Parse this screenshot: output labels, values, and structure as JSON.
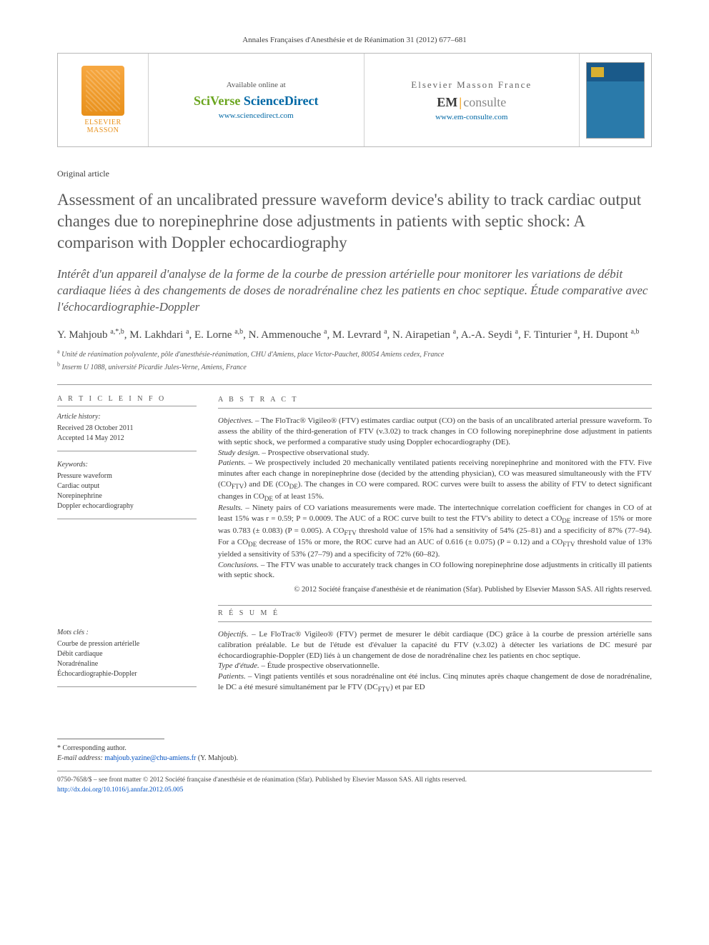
{
  "journal_header": "Annales Françaises d'Anesthésie et de Réanimation 31 (2012) 677–681",
  "banner": {
    "publisher_top": "ELSEVIER",
    "publisher_bottom": "MASSON",
    "col1": {
      "avail": "Available online at",
      "brand_a": "SciVerse ",
      "brand_b": "ScienceDirect",
      "url": "www.sciencedirect.com"
    },
    "col2": {
      "label": "Elsevier Masson France",
      "brand_a": "EM",
      "brand_b": "consulte",
      "url": "www.em-consulte.com"
    }
  },
  "article_type": "Original article",
  "title_en": "Assessment of an uncalibrated pressure waveform device's ability to track cardiac output changes due to norepinephrine dose adjustments in patients with septic shock: A comparison with Doppler echocardiography",
  "title_fr": "Intérêt d'un appareil d'analyse de la forme de la courbe de pression artérielle pour monitorer les variations de débit cardiaque liées à des changements de doses de noradrénaline chez les patients en choc septique. Étude comparative avec l'échocardiographie-Doppler",
  "authors_html": "Y. Mahjoub <sup>a,*,b</sup>, M. Lakhdari <sup>a</sup>, E. Lorne <sup>a,b</sup>, N. Ammenouche <sup>a</sup>, M. Levrard <sup>a</sup>, N. Airapetian <sup>a</sup>, A.-A. Seydi <sup>a</sup>, F. Tinturier <sup>a</sup>, H. Dupont <sup>a,b</sup>",
  "affiliations": [
    {
      "sup": "a",
      "text": "Unité de réanimation polyvalente, pôle d'anesthésie-réanimation, CHU d'Amiens, place Victor-Pauchet, 80054 Amiens cedex, France"
    },
    {
      "sup": "b",
      "text": "Inserm U 1088, université Picardie Jules-Verne, Amiens, France"
    }
  ],
  "article_info": {
    "header": "A R T I C L E  I N F O",
    "history_label": "Article history:",
    "received": "Received 28 October 2011",
    "accepted": "Accepted 14 May 2012",
    "keywords_label": "Keywords:",
    "keywords": [
      "Pressure waveform",
      "Cardiac output",
      "Norepinephrine",
      "Doppler echocardiography"
    ],
    "mots_label": "Mots clés :",
    "mots": [
      "Courbe de pression artérielle",
      "Débit cardiaque",
      "Noradrénaline",
      "Échocardiographie-Doppler"
    ]
  },
  "abstract": {
    "header": "A B S T R A C T",
    "objectives_label": "Objectives. –",
    "objectives": " The FloTrac® Vigileo® (FTV) estimates cardiac output (CO) on the basis of an uncalibrated arterial pressure waveform. To assess the ability of the third-generation of FTV (v.3.02) to track changes in CO following norepinephrine dose adjustment in patients with septic shock, we performed a comparative study using Doppler echocardiography (DE).",
    "design_label": "Study design. –",
    "design": " Prospective observational study.",
    "patients_label": "Patients. –",
    "patients": " We prospectively included 20 mechanically ventilated patients receiving norepinephrine and monitored with the FTV. Five minutes after each change in norepinephrine dose (decided by the attending physician), CO was measured simultaneously with the FTV (COFTV) and DE (CODE). The changes in CO were compared. ROC curves were built to assess the ability of FTV to detect significant changes in CODE of at least 15%.",
    "results_label": "Results. –",
    "results": " Ninety pairs of CO variations measurements were made. The intertechnique correlation coefficient for changes in CO of at least 15% was r = 0.59; P = 0.0009. The AUC of a ROC curve built to test the FTV's ability to detect a CODE increase of 15% or more was 0.783 (± 0.083) (P = 0.005). A COFTV threshold value of 15% had a sensitivity of 54% (25–81) and a specificity of 87% (77–94). For a CODE decrease of 15% or more, the ROC curve had an AUC of 0.616 (± 0.075) (P = 0.12) and a COFTV threshold value of 13% yielded a sensitivity of 53% (27–79) and a specificity of 72% (60–82).",
    "conclusions_label": "Conclusions. –",
    "conclusions": " The FTV was unable to accurately track changes in CO following norepinephrine dose adjustments in critically ill patients with septic shock.",
    "copyright": "© 2012 Société française d'anesthésie et de réanimation (Sfar). Published by Elsevier Masson SAS. All rights reserved."
  },
  "resume": {
    "header": "R É S U M É",
    "objectifs_label": "Objectifs. –",
    "objectifs": " Le FloTrac® Vigileo® (FTV) permet de mesurer le débit cardiaque (DC) grâce à la courbe de pression artérielle sans calibration préalable. Le but de l'étude est d'évaluer la capacité du FTV (v.3.02) à détecter les variations de DC mesuré par échocardiographie-Doppler (ED) liés à un changement de dose de noradrénaline chez les patients en choc septique.",
    "type_label": "Type d'étude. –",
    "type": " Étude prospective observationnelle.",
    "patients_label": "Patients. –",
    "patients": " Vingt patients ventilés et sous noradrénaline ont été inclus. Cinq minutes après chaque changement de dose de noradrénaline, le DC a été mesuré simultanément par le FTV (DCFTV) et par ED"
  },
  "corresponding": {
    "label": "* Corresponding author.",
    "email_label": "E-mail address:",
    "email": "mahjoub.yazine@chu-amiens.fr",
    "who": "(Y. Mahjoub)."
  },
  "footer": {
    "line": "0750-7658/$ – see front matter © 2012 Société française d'anesthésie et de réanimation (Sfar). Published by Elsevier Masson SAS. All rights reserved.",
    "doi": "http://dx.doi.org/10.1016/j.annfar.2012.05.005"
  },
  "colors": {
    "text": "#3a3a3a",
    "link": "#0050c0",
    "orange": "#e8901a",
    "green": "#6aa51e",
    "blue": "#0068a5",
    "rule": "#999999"
  }
}
